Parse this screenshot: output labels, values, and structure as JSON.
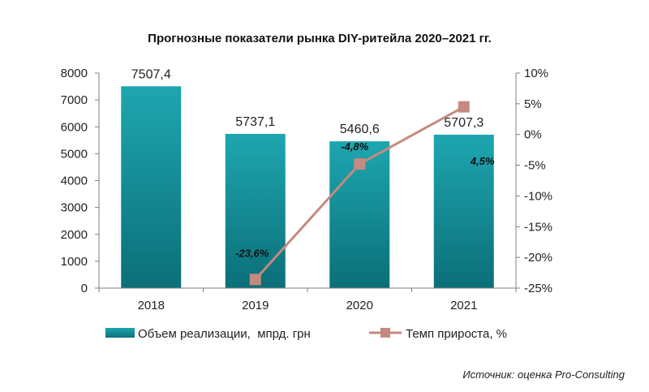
{
  "chart_data": {
    "type": "bar",
    "title": "Прогнозные показатели рынка DIY-ритейла 2020–2021 гг.",
    "categories": [
      "2018",
      "2019",
      "2020",
      "2021"
    ],
    "series": [
      {
        "name": "Объем реализации,  мпрд. грн",
        "type": "bar",
        "axis": "left",
        "values": [
          7507.4,
          5737.1,
          5460.6,
          5707.3
        ],
        "labels": [
          "7507,4",
          "5737,1",
          "5460,6",
          "5707,3"
        ],
        "color": "#1a9ba5"
      },
      {
        "name": "Темп прироста, %",
        "type": "line",
        "axis": "right",
        "values": [
          null,
          -23.6,
          -4.8,
          4.5
        ],
        "labels": [
          "",
          "-23,6%",
          "-4,8%",
          "4,5%"
        ],
        "color": "#c48a80"
      }
    ],
    "y_left": {
      "min": 0,
      "max": 8000,
      "ticks": [
        "0",
        "1000",
        "2000",
        "3000",
        "4000",
        "5000",
        "6000",
        "7000",
        "8000"
      ]
    },
    "y_right": {
      "min": -25,
      "max": 10,
      "ticks": [
        "-25%",
        "-20%",
        "-15%",
        "-10%",
        "-5%",
        "0%",
        "5%",
        "10%"
      ]
    },
    "legend_position": "bottom",
    "grid": false
  },
  "source_note": "Источник: оценка Pro-Consulting"
}
